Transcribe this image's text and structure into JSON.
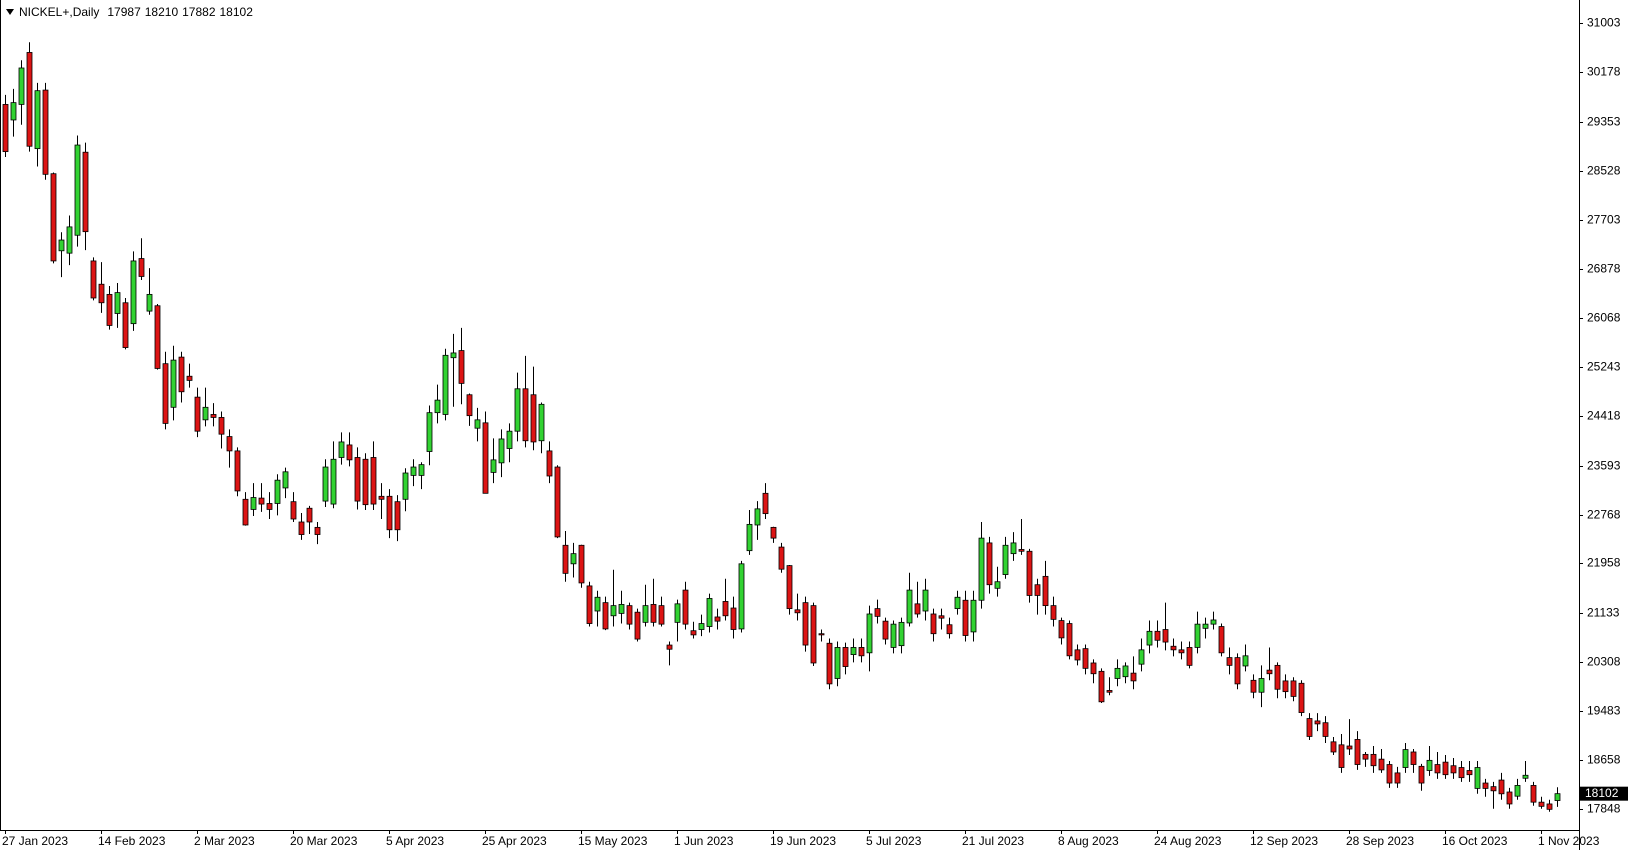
{
  "chart_data": {
    "type": "candlestick",
    "title": "NICKEL+,Daily",
    "up_color": "#32d232",
    "down_color": "#dc1414",
    "grid": false,
    "ylim": [
      17494,
      31388
    ],
    "yticks": [
      31003,
      30178,
      29353,
      28528,
      27703,
      26878,
      26068,
      25243,
      24418,
      23593,
      22768,
      21958,
      21133,
      20308,
      19483,
      18658,
      17848
    ],
    "categories": [
      "27 Jan 2023",
      null,
      null,
      null,
      null,
      null,
      null,
      null,
      null,
      null,
      null,
      null,
      "14 Feb 2023",
      null,
      null,
      null,
      null,
      null,
      null,
      null,
      null,
      null,
      null,
      null,
      "2 Mar 2023",
      null,
      null,
      null,
      null,
      null,
      null,
      null,
      null,
      null,
      null,
      null,
      "20 Mar 2023",
      null,
      null,
      null,
      null,
      null,
      null,
      null,
      null,
      null,
      null,
      null,
      "5 Apr 2023",
      null,
      null,
      null,
      null,
      null,
      null,
      null,
      null,
      null,
      null,
      null,
      "25 Apr 2023",
      null,
      null,
      null,
      null,
      null,
      null,
      null,
      null,
      null,
      null,
      null,
      "15 May 2023",
      null,
      null,
      null,
      null,
      null,
      null,
      null,
      null,
      null,
      null,
      null,
      "1 Jun 2023",
      null,
      null,
      null,
      null,
      null,
      null,
      null,
      null,
      null,
      null,
      null,
      "19 Jun 2023",
      null,
      null,
      null,
      null,
      null,
      null,
      null,
      null,
      null,
      null,
      null,
      "5 Jul 2023",
      null,
      null,
      null,
      null,
      null,
      null,
      null,
      null,
      null,
      null,
      null,
      "21 Jul 2023",
      null,
      null,
      null,
      null,
      null,
      null,
      null,
      null,
      null,
      null,
      null,
      "8 Aug 2023",
      null,
      null,
      null,
      null,
      null,
      null,
      null,
      null,
      null,
      null,
      null,
      "24 Aug 2023",
      null,
      null,
      null,
      null,
      null,
      null,
      null,
      null,
      null,
      null,
      null,
      "12 Sep 2023",
      null,
      null,
      null,
      null,
      null,
      null,
      null,
      null,
      null,
      null,
      null,
      "28 Sep 2023",
      null,
      null,
      null,
      null,
      null,
      null,
      null,
      null,
      null,
      null,
      null,
      "16 Oct 2023",
      null,
      null,
      null,
      null,
      null,
      null,
      null,
      null,
      null,
      null,
      null,
      "1 Nov 2023",
      null,
      null
    ],
    "open": [
      29640,
      29380,
      29640,
      30510,
      28900,
      29880,
      28480,
      27190,
      27150,
      27450,
      28840,
      27020,
      26630,
      26460,
      26140,
      26320,
      25970,
      27060,
      26180,
      26270,
      25300,
      24570,
      25410,
      25090,
      24740,
      24360,
      24450,
      24400,
      24080,
      23840,
      23030,
      22860,
      23050,
      22960,
      22960,
      23220,
      22990,
      22650,
      22880,
      22560,
      23000,
      22950,
      23730,
      23940,
      23730,
      23700,
      23730,
      23080,
      23080,
      22990,
      23030,
      23430,
      23430,
      23830,
      24480,
      24450,
      25400,
      25520,
      24780,
      24220,
      24310,
      23480,
      23640,
      23880,
      24170,
      24880,
      24780,
      24010,
      23840,
      23570,
      22260,
      21950,
      22260,
      21580,
      21160,
      21300,
      21080,
      21120,
      21250,
      21140,
      20970,
      21270,
      21250,
      20590,
      20970,
      21510,
      20830,
      20850,
      20900,
      21060,
      21320,
      21210,
      20860,
      22170,
      22600,
      23130,
      22560,
      22230,
      21920,
      21180,
      21300,
      21250,
      20780,
      20620,
      20030,
      20550,
      20430,
      20550,
      20460,
      21200,
      20990,
      20550,
      20580,
      20960,
      21280,
      21160,
      21110,
      21080,
      20930,
      21200,
      21340,
      20810,
      21340,
      22300,
      21540,
      21770,
      22120,
      22190,
      22160,
      21600,
      21740,
      21250,
      21000,
      20950,
      20510,
      20530,
      20290,
      20150,
      19830,
      20030,
      20060,
      20120,
      20270,
      20590,
      20820,
      20850,
      20570,
      20510,
      20550,
      20550,
      20870,
      20940,
      20900,
      20380,
      20380,
      20240,
      20000,
      19800,
      20170,
      20250,
      19990,
      19990,
      19950,
      19360,
      19320,
      19290,
      18970,
      18920,
      18900,
      19010,
      18760,
      18760,
      18680,
      18590,
      18450,
      18540,
      18800,
      18560,
      18490,
      18590,
      18630,
      18570,
      18540,
      18490,
      18190,
      18280,
      18220,
      18330,
      18130,
      18060,
      18360,
      18240,
      17960,
      17930,
      17987
    ],
    "high": [
      29800,
      29900,
      30380,
      30680,
      30000,
      30000,
      28500,
      27500,
      27780,
      29120,
      29000,
      27080,
      27000,
      26600,
      26650,
      26400,
      27180,
      27400,
      26900,
      26300,
      25500,
      25600,
      25500,
      25300,
      24900,
      24900,
      24640,
      24500,
      24200,
      23900,
      23150,
      23300,
      23300,
      23150,
      23450,
      23560,
      23150,
      22800,
      22920,
      22650,
      23700,
      24000,
      24150,
      24150,
      23900,
      23800,
      24000,
      23300,
      23200,
      23100,
      23550,
      23700,
      23650,
      24600,
      24950,
      25550,
      25800,
      25900,
      24800,
      24560,
      24500,
      24050,
      24200,
      24300,
      25150,
      25430,
      25250,
      24650,
      24000,
      23600,
      22500,
      22300,
      22270,
      21650,
      21500,
      21400,
      21850,
      21500,
      21300,
      21200,
      21600,
      21700,
      21400,
      20650,
      21350,
      21650,
      20980,
      21100,
      21450,
      21200,
      21700,
      21400,
      22000,
      22850,
      23000,
      23300,
      22570,
      22300,
      21930,
      21450,
      21400,
      21300,
      20850,
      20700,
      20650,
      20630,
      20700,
      20700,
      21250,
      21350,
      21050,
      21000,
      21050,
      21800,
      21650,
      21700,
      21200,
      21200,
      21050,
      21500,
      21500,
      21500,
      22650,
      22400,
      21900,
      22400,
      22480,
      22700,
      22200,
      21700,
      22000,
      21400,
      21050,
      21000,
      20600,
      20600,
      20350,
      20200,
      20050,
      20350,
      20300,
      20400,
      20700,
      21000,
      21000,
      21300,
      20700,
      20650,
      20650,
      21150,
      21050,
      21150,
      20950,
      20550,
      20450,
      20600,
      20100,
      20250,
      20550,
      20300,
      20100,
      20050,
      20000,
      19450,
      19450,
      19400,
      19050,
      19100,
      19350,
      19150,
      18800,
      18900,
      18850,
      18650,
      18550,
      18950,
      18850,
      18600,
      18900,
      18800,
      18750,
      18700,
      18650,
      18650,
      18650,
      18350,
      18300,
      18450,
      18200,
      18350,
      18650,
      18300,
      18050,
      18000,
      18210
    ],
    "low": [
      28760,
      29100,
      29300,
      28850,
      28600,
      28380,
      26980,
      26750,
      26950,
      27260,
      27200,
      26360,
      26150,
      25870,
      25900,
      25540,
      25850,
      26700,
      26120,
      25200,
      24200,
      24350,
      24650,
      24900,
      24070,
      24250,
      24250,
      23880,
      23560,
      23080,
      22590,
      22750,
      22820,
      22700,
      22760,
      23050,
      22650,
      22350,
      22450,
      22280,
      22900,
      22880,
      23610,
      23580,
      22860,
      22850,
      22850,
      22700,
      22380,
      22330,
      22830,
      23250,
      23200,
      23600,
      24300,
      24350,
      24580,
      24620,
      24260,
      24000,
      23130,
      23300,
      23400,
      23650,
      24000,
      23900,
      23850,
      23800,
      23300,
      22380,
      21650,
      21720,
      21550,
      20900,
      20900,
      20840,
      20900,
      20950,
      20850,
      20650,
      20900,
      20900,
      20900,
      20250,
      20650,
      20850,
      20700,
      20740,
      20800,
      20850,
      21000,
      20700,
      20800,
      22100,
      22350,
      22700,
      22300,
      21800,
      21100,
      21000,
      20480,
      20240,
      20650,
      19850,
      19900,
      20100,
      20300,
      20300,
      20150,
      20950,
      20600,
      20450,
      20450,
      20900,
      21050,
      21000,
      20650,
      20850,
      20700,
      21100,
      20650,
      20650,
      21200,
      21450,
      21400,
      21700,
      22000,
      22100,
      21300,
      21100,
      21100,
      20900,
      20600,
      20350,
      20250,
      20100,
      19950,
      19620,
      19750,
      19900,
      19950,
      19850,
      20150,
      20450,
      20550,
      20500,
      20400,
      20350,
      20200,
      20450,
      20700,
      20850,
      20400,
      20100,
      19850,
      20150,
      19700,
      19550,
      20000,
      19700,
      19700,
      19650,
      19400,
      19000,
      19150,
      18950,
      18750,
      18450,
      18750,
      18500,
      18550,
      18450,
      18450,
      18200,
      18200,
      18450,
      18450,
      18150,
      18400,
      18350,
      18350,
      18350,
      18300,
      18300,
      18100,
      18050,
      17850,
      18000,
      17850,
      18000,
      18300,
      17900,
      17850,
      17800,
      17882
    ],
    "close": [
      28850,
      29670,
      30250,
      28940,
      29870,
      28470,
      27020,
      27370,
      27590,
      28960,
      27510,
      26400,
      26320,
      25940,
      26490,
      25570,
      27020,
      26760,
      26460,
      25220,
      24300,
      25360,
      24830,
      25020,
      24170,
      24570,
      24400,
      24120,
      23840,
      23170,
      22600,
      23060,
      22950,
      22860,
      23350,
      23490,
      22700,
      22440,
      22650,
      22440,
      23570,
      23700,
      23990,
      23690,
      23000,
      22940,
      22950,
      23030,
      22520,
      22520,
      23470,
      23570,
      23610,
      24480,
      24690,
      25440,
      25480,
      24970,
      24430,
      24360,
      23130,
      23690,
      24040,
      24170,
      24880,
      24010,
      23990,
      24620,
      23420,
      22400,
      21790,
      22120,
      21630,
      20950,
      21390,
      20860,
      21250,
      21270,
      20940,
      20690,
      21250,
      20970,
      20940,
      20520,
      21280,
      20940,
      20760,
      20950,
      21370,
      20990,
      21080,
      20850,
      21950,
      22610,
      22870,
      22790,
      22380,
      21860,
      21200,
      21130,
      20590,
      20290,
      20760,
      19940,
      20550,
      20230,
      20550,
      20410,
      21110,
      21070,
      20690,
      20940,
      20970,
      21510,
      21110,
      21510,
      20780,
      21040,
      20780,
      21390,
      20750,
      21340,
      22380,
      21600,
      21650,
      22260,
      22300,
      22160,
      21420,
      21420,
      21250,
      21020,
      20710,
      20410,
      20340,
      20200,
      20110,
      19640,
      19800,
      20200,
      20240,
      19990,
      20510,
      20820,
      20670,
      20640,
      20510,
      20460,
      20250,
      20940,
      20940,
      21010,
      20460,
      20250,
      19940,
      20410,
      19800,
      20030,
      20110,
      19850,
      19810,
      19730,
      19460,
      19060,
      19270,
      19060,
      18800,
      18540,
      18850,
      18590,
      18680,
      18570,
      18500,
      18280,
      18280,
      18840,
      18590,
      18280,
      18660,
      18450,
      18420,
      18450,
      18370,
      18420,
      18540,
      18190,
      18150,
      18100,
      17930,
      18240,
      18410,
      17960,
      17890,
      17840,
      18102
    ]
  }
}
